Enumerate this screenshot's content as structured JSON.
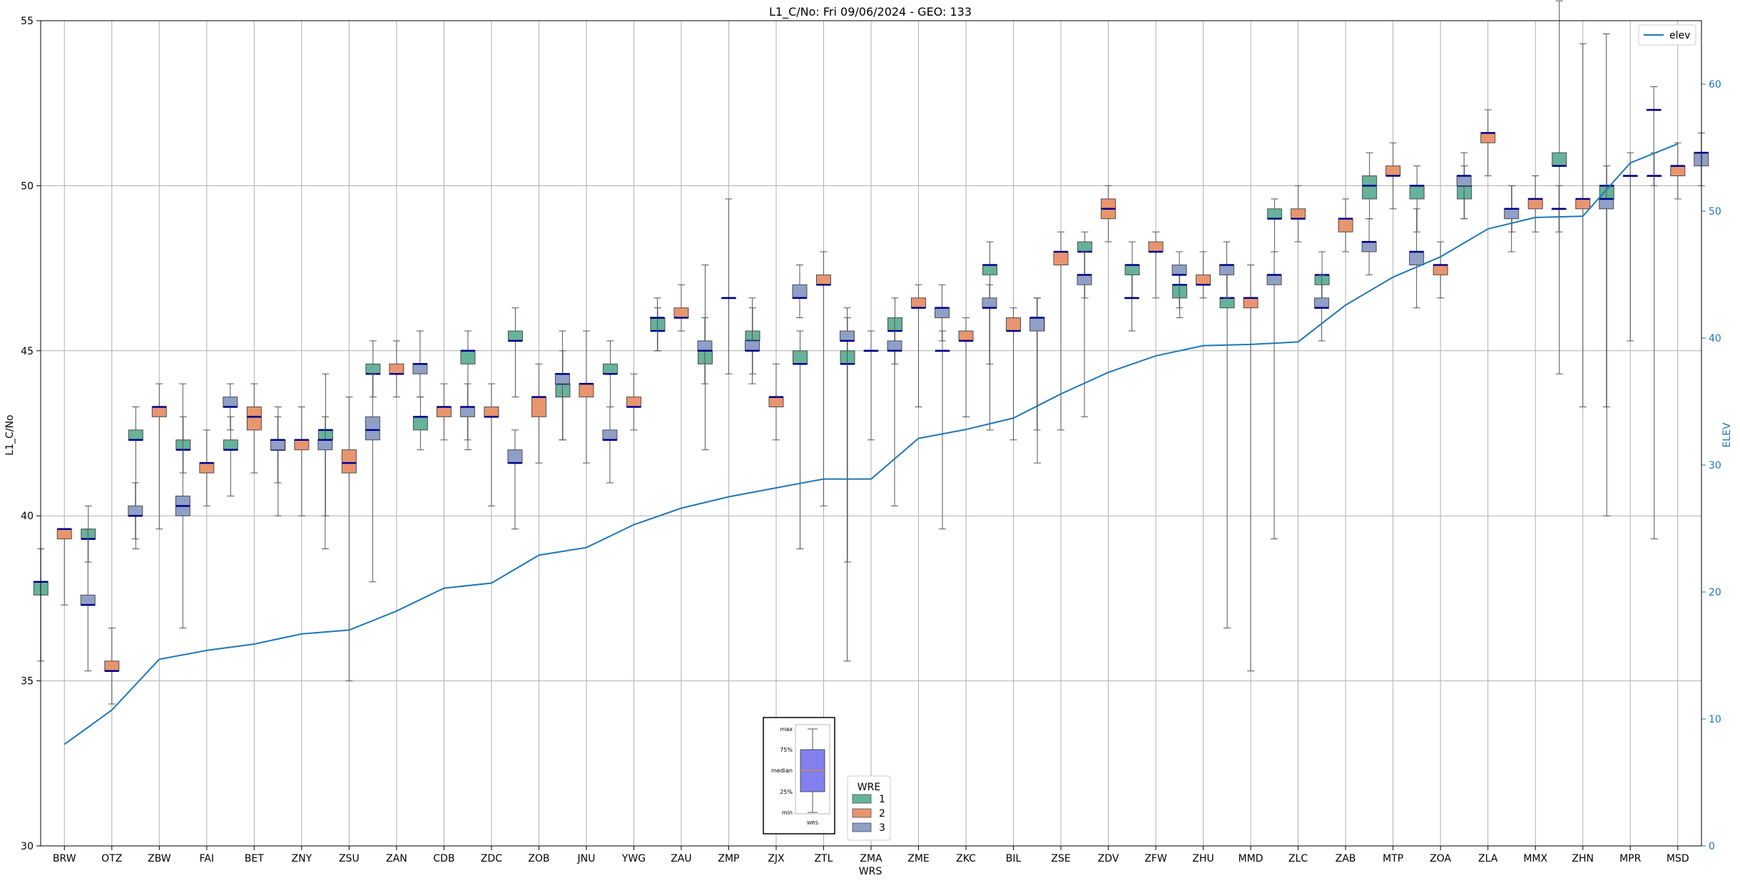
{
  "chart_data": {
    "type": "box",
    "title": "L1_C/No: Fri 09/06/2024 - GEO: 133",
    "xlabel": "WRS",
    "ylabel": "L1_C/No",
    "ylabel_right": "ELEV",
    "ylim": [
      30,
      55
    ],
    "ylim_right": [
      0,
      65
    ],
    "yticks": [
      30,
      35,
      40,
      45,
      50,
      55
    ],
    "yticks_right": [
      0,
      10,
      20,
      30,
      40,
      50,
      60
    ],
    "grid": true,
    "categories": [
      "BRW",
      "OTZ",
      "ZBW",
      "FAI",
      "BET",
      "ZNY",
      "ZSU",
      "ZAN",
      "CDB",
      "ZDC",
      "ZOB",
      "JNU",
      "YWG",
      "ZAU",
      "ZMP",
      "ZJX",
      "ZTL",
      "ZMA",
      "ZME",
      "ZKC",
      "BIL",
      "ZSE",
      "ZDV",
      "ZFW",
      "ZHU",
      "MMD",
      "ZLC",
      "ZAB",
      "MTP",
      "ZOA",
      "ZLA",
      "MMX",
      "ZHN",
      "MPR",
      "MSD"
    ],
    "legend_wre": {
      "title": "WRE",
      "placement": "bottom-center",
      "entries": [
        "1",
        "2",
        "3"
      ]
    },
    "legend_elev": {
      "label": "elev",
      "placement": "top-right"
    },
    "series_colors": {
      "1": "#66b29a",
      "2": "#e8956f",
      "3": "#8f9fc6",
      "elev": "#1f77b4"
    },
    "box_series": [
      {
        "name": "1",
        "boxes": [
          [
            35.6,
            37.6,
            38.0,
            38.0,
            39.0
          ],
          [
            38.6,
            39.3,
            39.3,
            39.6,
            40.3
          ],
          [
            39.0,
            42.3,
            42.3,
            42.6,
            43.3
          ],
          [
            41.3,
            42.0,
            42.0,
            42.3,
            43.0
          ],
          [
            40.6,
            42.0,
            42.0,
            42.3,
            43.0
          ],
          [
            40.0,
            42.0,
            42.0,
            42.3,
            43.3
          ],
          [
            40.0,
            42.3,
            42.6,
            42.6,
            44.3
          ],
          [
            43.6,
            44.3,
            44.3,
            44.6,
            45.3
          ],
          [
            42.0,
            42.6,
            43.0,
            43.0,
            43.6
          ],
          [
            42.0,
            44.6,
            45.0,
            45.0,
            45.6
          ],
          [
            43.6,
            45.3,
            45.3,
            45.6,
            46.3
          ],
          [
            42.3,
            43.6,
            44.0,
            44.0,
            45.0
          ],
          [
            43.3,
            44.3,
            44.3,
            44.6,
            45.3
          ],
          [
            45.0,
            45.6,
            45.6,
            46.0,
            46.3
          ],
          [
            42.0,
            44.6,
            45.0,
            45.0,
            47.6
          ],
          [
            44.3,
            45.3,
            45.3,
            45.6,
            46.3
          ],
          [
            39.0,
            44.6,
            44.6,
            45.0,
            45.6
          ],
          [
            38.6,
            44.6,
            44.6,
            45.0,
            46.0
          ],
          [
            44.6,
            45.6,
            45.6,
            46.0,
            46.6
          ],
          [
            39.6,
            45.0,
            45.0,
            45.0,
            45.6
          ],
          [
            42.6,
            47.3,
            47.6,
            47.6,
            48.3
          ],
          [
            41.6,
            45.6,
            46.0,
            46.0,
            46.6
          ],
          [
            46.6,
            48.0,
            48.0,
            48.3,
            48.6
          ],
          [
            46.6,
            47.3,
            47.6,
            47.6,
            48.3
          ],
          [
            46.0,
            46.6,
            47.0,
            47.0,
            47.6
          ],
          [
            36.6,
            46.3,
            46.6,
            46.6,
            47.3
          ],
          [
            48.0,
            49.0,
            49.0,
            49.3,
            49.6
          ],
          [
            46.3,
            47.0,
            47.3,
            47.3,
            48.0
          ],
          [
            49.0,
            49.6,
            50.0,
            50.3,
            51.0
          ],
          [
            48.6,
            49.6,
            50.0,
            50.0,
            50.6
          ],
          [
            49.0,
            49.6,
            50.0,
            50.0,
            50.6
          ],
          [
            48.6,
            49.3,
            49.3,
            49.3,
            50.0
          ],
          [
            44.3,
            50.6,
            50.6,
            51.0,
            55.6
          ],
          [
            40.0,
            49.6,
            50.0,
            50.0,
            50.6
          ],
          [
            39.3,
            50.3,
            50.3,
            50.3,
            51.0
          ]
        ]
      },
      {
        "name": "2",
        "boxes": [
          [
            37.3,
            39.3,
            39.6,
            39.6,
            39.6
          ],
          [
            34.3,
            35.3,
            35.3,
            35.6,
            36.6
          ],
          [
            39.6,
            43.0,
            43.3,
            43.3,
            44.0
          ],
          [
            40.3,
            41.3,
            41.6,
            41.6,
            42.6
          ],
          [
            41.3,
            42.6,
            43.0,
            43.3,
            44.0
          ],
          [
            40.0,
            42.0,
            42.3,
            42.3,
            43.3
          ],
          [
            35.0,
            41.3,
            41.6,
            42.0,
            43.6
          ],
          [
            43.6,
            44.3,
            44.3,
            44.6,
            45.3
          ],
          [
            42.3,
            43.0,
            43.3,
            43.3,
            44.0
          ],
          [
            40.3,
            43.0,
            43.0,
            43.3,
            44.0
          ],
          [
            41.6,
            43.0,
            43.6,
            43.6,
            44.6
          ],
          [
            41.6,
            43.6,
            44.0,
            44.0,
            45.6
          ],
          [
            42.6,
            43.3,
            43.3,
            43.6,
            44.3
          ],
          [
            45.6,
            46.0,
            46.0,
            46.3,
            47.0
          ],
          [
            44.3,
            46.6,
            46.6,
            46.6,
            49.6
          ],
          [
            42.3,
            43.3,
            43.6,
            43.6,
            44.6
          ],
          [
            40.3,
            47.0,
            47.0,
            47.3,
            48.0
          ],
          [
            42.3,
            45.0,
            45.0,
            45.0,
            45.6
          ],
          [
            43.3,
            46.3,
            46.3,
            46.6,
            47.0
          ],
          [
            43.0,
            45.3,
            45.3,
            45.6,
            46.0
          ],
          [
            42.3,
            45.6,
            45.6,
            46.0,
            46.3
          ],
          [
            42.6,
            47.6,
            48.0,
            48.0,
            48.6
          ],
          [
            48.3,
            49.0,
            49.3,
            49.6,
            50.0
          ],
          [
            46.6,
            48.0,
            48.0,
            48.3,
            48.6
          ],
          [
            46.6,
            47.0,
            47.0,
            47.3,
            48.0
          ],
          [
            35.3,
            46.3,
            46.6,
            46.6,
            47.6
          ],
          [
            48.3,
            49.0,
            49.0,
            49.3,
            50.0
          ],
          [
            48.0,
            48.6,
            49.0,
            49.0,
            49.6
          ],
          [
            49.3,
            50.3,
            50.3,
            50.6,
            51.3
          ],
          [
            46.6,
            47.3,
            47.6,
            47.6,
            48.3
          ],
          [
            50.3,
            51.3,
            51.6,
            51.6,
            52.3
          ],
          [
            48.6,
            49.3,
            49.6,
            49.6,
            50.3
          ],
          [
            43.3,
            49.3,
            49.6,
            49.6,
            54.3
          ],
          [
            45.3,
            50.3,
            50.3,
            50.3,
            51.0
          ],
          [
            49.6,
            50.3,
            50.6,
            50.6,
            51.3
          ]
        ]
      },
      {
        "name": "3",
        "boxes": [
          [
            35.3,
            37.3,
            37.3,
            37.6,
            39.6
          ],
          [
            39.3,
            40.0,
            40.0,
            40.3,
            41.0
          ],
          [
            36.6,
            40.0,
            40.3,
            40.6,
            44.0
          ],
          [
            42.6,
            43.3,
            43.3,
            43.6,
            44.0
          ],
          [
            41.0,
            42.0,
            42.3,
            42.3,
            43.0
          ],
          [
            39.0,
            42.0,
            42.3,
            42.3,
            43.0
          ],
          [
            38.0,
            42.3,
            42.6,
            43.0,
            44.3
          ],
          [
            43.6,
            44.3,
            44.6,
            44.6,
            45.6
          ],
          [
            42.3,
            43.0,
            43.3,
            43.3,
            44.0
          ],
          [
            39.6,
            41.6,
            41.6,
            42.0,
            42.6
          ],
          [
            42.3,
            44.0,
            44.3,
            44.3,
            45.6
          ],
          [
            41.0,
            42.3,
            42.3,
            42.6,
            43.3
          ],
          [
            45.0,
            46.0,
            46.0,
            46.0,
            46.6
          ],
          [
            44.0,
            45.0,
            45.0,
            45.3,
            46.0
          ],
          [
            44.0,
            45.0,
            45.0,
            45.3,
            46.6
          ],
          [
            46.0,
            46.6,
            46.6,
            47.0,
            47.6
          ],
          [
            35.6,
            45.3,
            45.3,
            45.6,
            46.3
          ],
          [
            40.3,
            45.0,
            45.0,
            45.3,
            46.0
          ],
          [
            45.3,
            46.0,
            46.3,
            46.3,
            47.0
          ],
          [
            44.6,
            46.3,
            46.3,
            46.6,
            47.0
          ],
          [
            42.6,
            45.6,
            46.0,
            46.0,
            46.6
          ],
          [
            43.0,
            47.0,
            47.3,
            47.3,
            48.0
          ],
          [
            45.6,
            46.6,
            46.6,
            46.6,
            47.3
          ],
          [
            46.3,
            47.3,
            47.3,
            47.6,
            48.0
          ],
          [
            46.6,
            47.3,
            47.6,
            47.6,
            48.3
          ],
          [
            39.3,
            47.0,
            47.3,
            47.3,
            48.0
          ],
          [
            45.3,
            46.3,
            46.3,
            46.6,
            47.3
          ],
          [
            47.3,
            48.0,
            48.3,
            48.3,
            49.0
          ],
          [
            46.3,
            47.6,
            48.0,
            48.0,
            49.3
          ],
          [
            49.0,
            50.0,
            50.3,
            50.3,
            51.0
          ],
          [
            48.0,
            49.0,
            49.3,
            49.3,
            50.0
          ],
          [
            48.6,
            49.3,
            49.3,
            49.3,
            50.0
          ],
          [
            43.3,
            49.3,
            49.6,
            49.6,
            54.6
          ],
          [
            50.0,
            52.3,
            52.3,
            52.3,
            53.0
          ],
          [
            50.0,
            50.6,
            51.0,
            51.0,
            51.6
          ]
        ]
      }
    ],
    "elev": [
      8.0,
      10.7,
      14.7,
      15.4,
      15.9,
      16.7,
      17.0,
      18.5,
      20.3,
      20.7,
      22.9,
      23.5,
      25.3,
      26.6,
      27.5,
      28.2,
      28.9,
      28.9,
      32.1,
      32.8,
      33.7,
      35.6,
      37.3,
      38.6,
      39.4,
      39.5,
      39.7,
      42.6,
      44.8,
      46.4,
      48.6,
      49.5,
      49.6,
      53.8,
      55.3
    ],
    "key_box": {
      "labels": [
        "max",
        "75%",
        "median",
        "25%",
        "min"
      ],
      "xlabel": "WRS",
      "box_color": "#8080ee"
    }
  }
}
